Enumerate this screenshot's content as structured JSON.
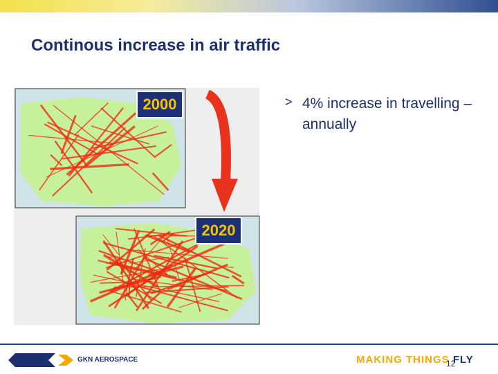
{
  "header": {
    "title": "Continous increase in air traffic"
  },
  "bullets": [
    "4% increase in travelling – annually"
  ],
  "images": [
    {
      "label": "2000"
    },
    {
      "label": "2020"
    }
  ],
  "footer": {
    "logo_text": "GKN AEROSPACE",
    "tagline_orange": "MAKING THINGS",
    "tagline_dark": "FLY",
    "page_number": "12"
  }
}
